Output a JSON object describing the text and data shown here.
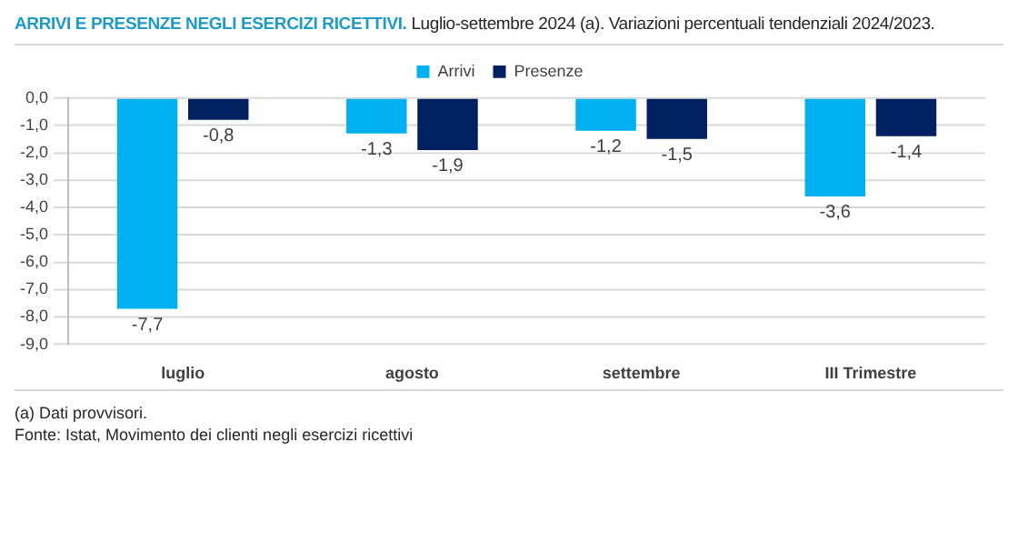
{
  "chart_data": {
    "type": "bar",
    "title": "ARRIVI E PRESENZE NEGLI ESERCIZI RICETTIVI.",
    "subtitle": "Luglio-settembre 2024 (a). Variazioni percentuali tendenziali 2024/2023.",
    "categories": [
      "luglio",
      "agosto",
      "settembre",
      "III Trimestre"
    ],
    "series": [
      {
        "name": "Arrivi",
        "color": "#00b0f0",
        "values": [
          -7.7,
          -1.3,
          -1.2,
          -3.6
        ],
        "value_labels": [
          "-7,7",
          "-1,3",
          "-1,2",
          "-3,6"
        ]
      },
      {
        "name": "Presenze",
        "color": "#002060",
        "values": [
          -0.8,
          -1.9,
          -1.5,
          -1.4
        ],
        "value_labels": [
          "-0,8",
          "-1,9",
          "-1,5",
          "-1,4"
        ]
      }
    ],
    "ylim": [
      -9,
      0
    ],
    "yticks": [
      {
        "value": 0,
        "label": "0,0"
      },
      {
        "value": -1,
        "label": "-1,0"
      },
      {
        "value": -2,
        "label": "-2,0"
      },
      {
        "value": -3,
        "label": "-3,0"
      },
      {
        "value": -4,
        "label": "-4,0"
      },
      {
        "value": -5,
        "label": "-5,0"
      },
      {
        "value": -6,
        "label": "-6,0"
      },
      {
        "value": -7,
        "label": "-7,0"
      },
      {
        "value": -8,
        "label": "-8,0"
      },
      {
        "value": -9,
        "label": "-9,0"
      }
    ],
    "grid": "y",
    "legend": "top",
    "annotations": [
      "(a) Dati provvisori.",
      "Fonte: Istat, Movimento dei clienti negli esercizi ricettivi"
    ]
  }
}
